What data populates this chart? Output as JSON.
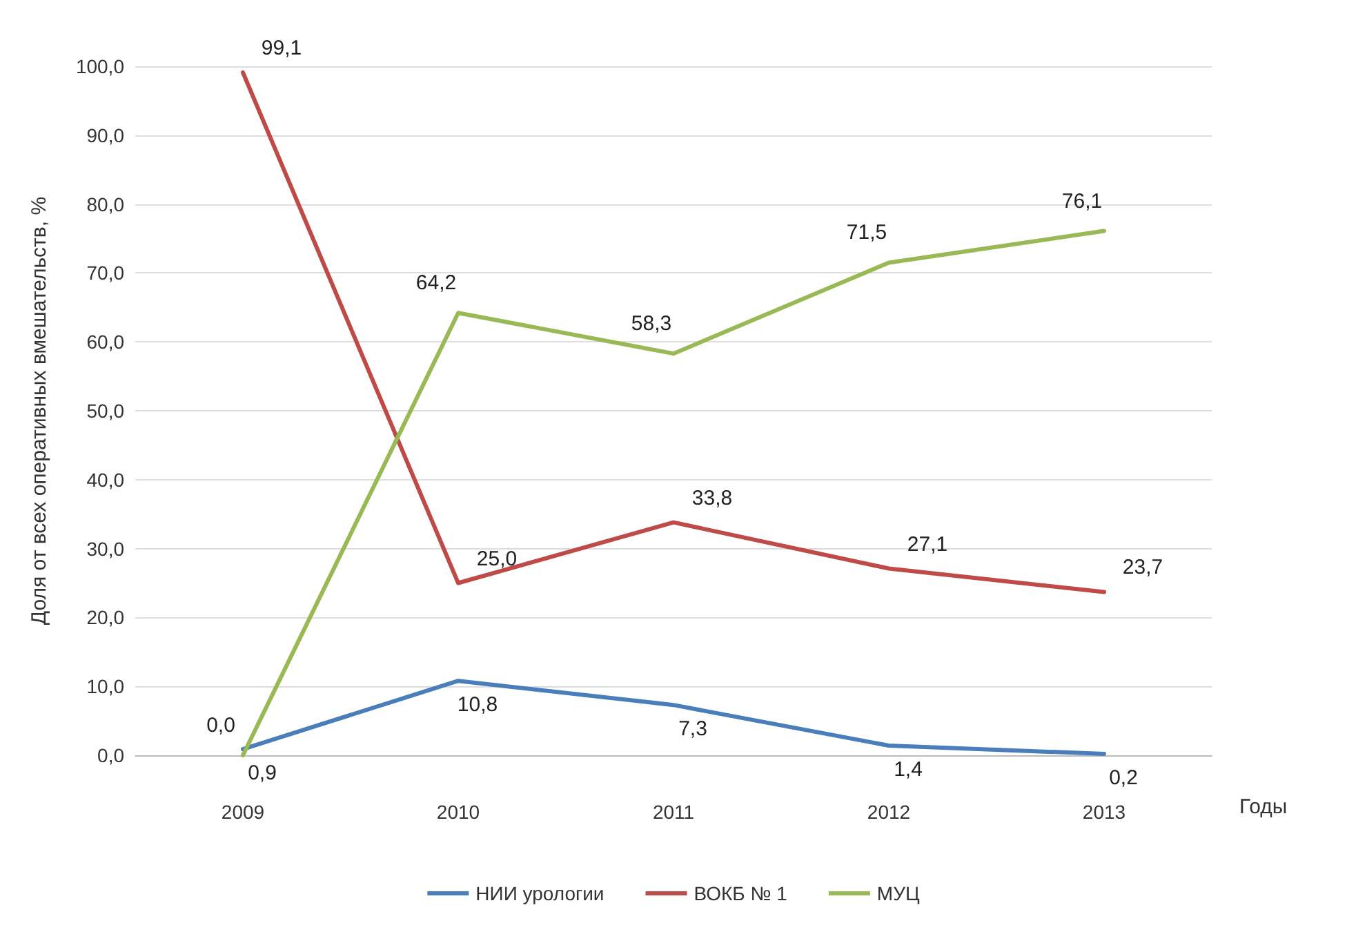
{
  "chart_data": {
    "type": "line",
    "ylabel": "Доля от всех оперативных вмешательств, %",
    "xlabel": "Годы",
    "categories": [
      "2009",
      "2010",
      "2011",
      "2012",
      "2013"
    ],
    "series": [
      {
        "name": "НИИ урологии",
        "color": "#4a7ebb",
        "values": [
          0.9,
          10.8,
          7.3,
          1.4,
          0.2
        ],
        "value_labels": [
          "0,9",
          "10,8",
          "7,3",
          "1,4",
          "0,2"
        ]
      },
      {
        "name": "ВОКБ № 1",
        "color": "#be4b48",
        "values": [
          99.1,
          25.0,
          33.8,
          27.1,
          23.7
        ],
        "value_labels": [
          "99,1",
          "25,0",
          "33,8",
          "27,1",
          "23,7"
        ]
      },
      {
        "name": "МУЦ",
        "color": "#98b954",
        "values": [
          0.0,
          64.2,
          58.3,
          71.5,
          76.1
        ],
        "value_labels": [
          "0,0",
          "64,2",
          "58,3",
          "71,5",
          "76,1"
        ]
      }
    ],
    "ylim": [
      0,
      100
    ],
    "yticks": [
      {
        "value": 0,
        "label": "0,0"
      },
      {
        "value": 10,
        "label": "10,0"
      },
      {
        "value": 20,
        "label": "20,0"
      },
      {
        "value": 30,
        "label": "30,0"
      },
      {
        "value": 40,
        "label": "40,0"
      },
      {
        "value": 50,
        "label": "50,0"
      },
      {
        "value": 60,
        "label": "60,0"
      },
      {
        "value": 70,
        "label": "70,0"
      },
      {
        "value": 80,
        "label": "80,0"
      },
      {
        "value": 90,
        "label": "90,0"
      },
      {
        "value": 100,
        "label": "100,0"
      }
    ],
    "grid": "y",
    "legend": "bottom",
    "marker": "none",
    "line_style": "solid"
  }
}
